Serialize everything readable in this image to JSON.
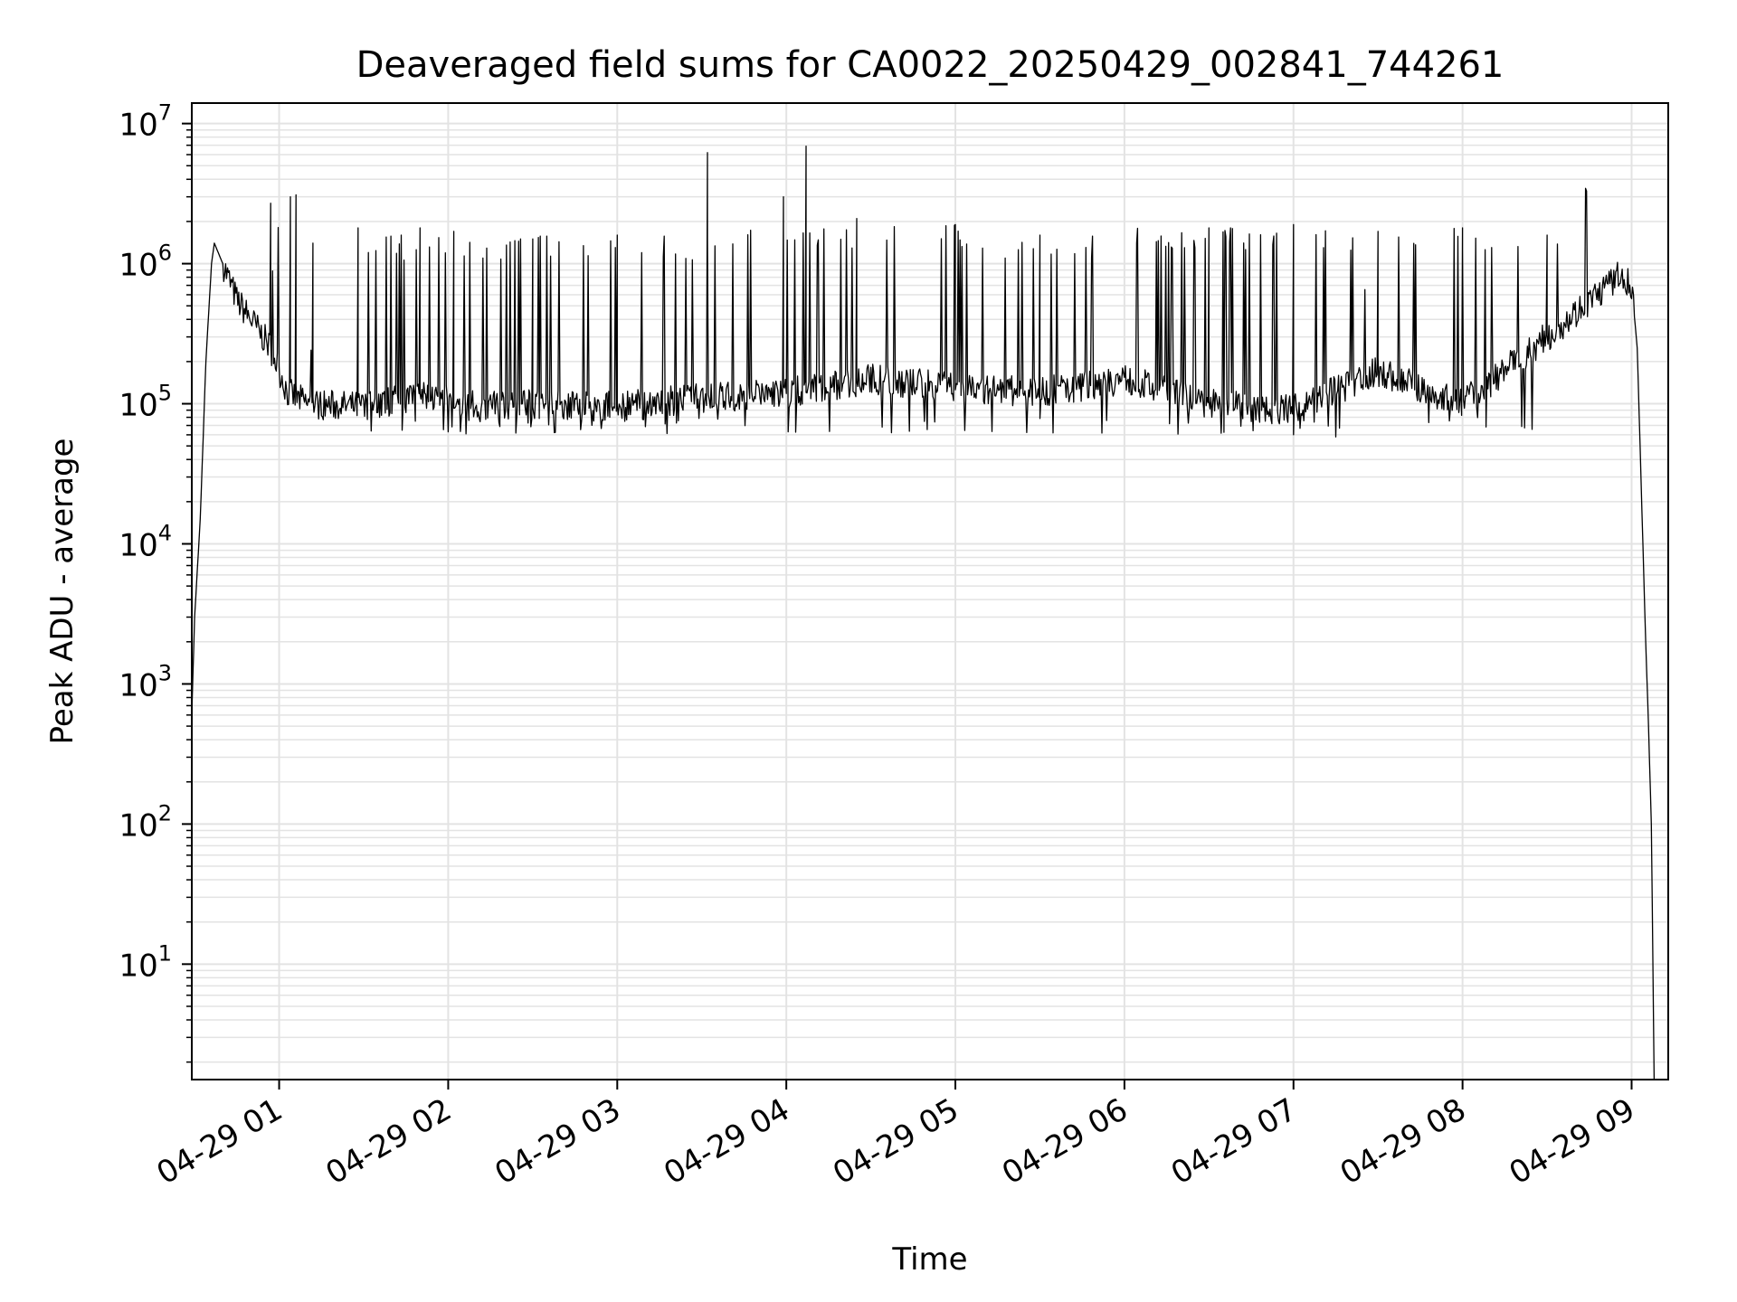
{
  "chart_data": {
    "type": "line",
    "title": "Deaveraged field sums for CA0022_20250429_002841_744261",
    "xlabel": "Time",
    "ylabel": "Peak ADU - average",
    "yscale": "log",
    "ylim": [
      1.5,
      14000000
    ],
    "xlim": [
      "2025-04-29 00:29",
      "2025-04-29 09:13"
    ],
    "grid": true,
    "line_color": "#000000",
    "x_tick_labels": [
      "04-29 01",
      "04-29 02",
      "04-29 03",
      "04-29 04",
      "04-29 05",
      "04-29 06",
      "04-29 07",
      "04-29 08",
      "04-29 09"
    ],
    "x_ticks": [
      "2025-04-29 01:00",
      "2025-04-29 02:00",
      "2025-04-29 03:00",
      "2025-04-29 04:00",
      "2025-04-29 05:00",
      "2025-04-29 06:00",
      "2025-04-29 07:00",
      "2025-04-29 08:00",
      "2025-04-29 09:00"
    ],
    "y_tick_labels": [
      {
        "base": "10",
        "exp": "1",
        "value": 10
      },
      {
        "base": "10",
        "exp": "2",
        "value": 100
      },
      {
        "base": "10",
        "exp": "3",
        "value": 1000
      },
      {
        "base": "10",
        "exp": "4",
        "value": 10000
      },
      {
        "base": "10",
        "exp": "5",
        "value": 100000
      },
      {
        "base": "10",
        "exp": "6",
        "value": 1000000
      },
      {
        "base": "10",
        "exp": "7",
        "value": 10000000
      }
    ],
    "series": [
      {
        "points": [
          [
            "2025-04-29 00:29",
            600
          ],
          [
            "2025-04-29 00:30",
            3000
          ],
          [
            "2025-04-29 00:32",
            15000
          ],
          [
            "2025-04-29 00:34",
            200000
          ],
          [
            "2025-04-29 00:36",
            1000000
          ],
          [
            "2025-04-29 00:37",
            1400000
          ],
          [
            "2025-04-29 00:40",
            1000000
          ],
          [
            "2025-04-29 00:45",
            550000
          ],
          [
            "2025-04-29 00:50",
            400000
          ],
          [
            "2025-04-29 00:57",
            250000
          ],
          [
            "2025-04-29 01:03",
            120000
          ],
          [
            "2025-04-29 01:10",
            100000
          ],
          [
            "2025-04-29 01:30",
            95000
          ],
          [
            "2025-04-29 01:50",
            115000
          ],
          [
            "2025-04-29 02:10",
            95000
          ],
          [
            "2025-04-29 02:30",
            100000
          ],
          [
            "2025-04-29 03:00",
            95000
          ],
          [
            "2025-04-29 03:30",
            110000
          ],
          [
            "2025-04-29 04:00",
            120000
          ],
          [
            "2025-04-29 04:30",
            150000
          ],
          [
            "2025-04-29 05:00",
            130000
          ],
          [
            "2025-04-29 05:30",
            120000
          ],
          [
            "2025-04-29 06:00",
            150000
          ],
          [
            "2025-04-29 06:30",
            100000
          ],
          [
            "2025-04-29 07:00",
            90000
          ],
          [
            "2025-04-29 07:30",
            170000
          ],
          [
            "2025-04-29 08:00",
            100000
          ],
          [
            "2025-04-29 08:30",
            300000
          ],
          [
            "2025-04-29 08:55",
            800000
          ],
          [
            "2025-04-29 09:00",
            700000
          ],
          [
            "2025-04-29 09:02",
            250000
          ],
          [
            "2025-04-29 09:03",
            50000
          ],
          [
            "2025-04-29 09:05",
            2000
          ],
          [
            "2025-04-29 09:06",
            500
          ],
          [
            "2025-04-29 09:07",
            100
          ],
          [
            "2025-04-29 09:08",
            1.5
          ]
        ],
        "spikes": [
          [
            "2025-04-29 00:57",
            2700000
          ],
          [
            "2025-04-29 01:04",
            3000000
          ],
          [
            "2025-04-29 01:06",
            3100000
          ],
          [
            "2025-04-29 01:12",
            1400000
          ],
          [
            "2025-04-29 01:28",
            1800000
          ],
          [
            "2025-04-29 01:50",
            1800000
          ],
          [
            "2025-04-29 02:02",
            1700000
          ],
          [
            "2025-04-29 02:30",
            1500000
          ],
          [
            "2025-04-29 03:00",
            1600000
          ],
          [
            "2025-04-29 03:32",
            6200000
          ],
          [
            "2025-04-29 03:59",
            3000000
          ],
          [
            "2025-04-29 04:07",
            6900000
          ],
          [
            "2025-04-29 04:25",
            2100000
          ],
          [
            "2025-04-29 05:00",
            1900000
          ],
          [
            "2025-04-29 05:30",
            1600000
          ],
          [
            "2025-04-29 06:30",
            1800000
          ],
          [
            "2025-04-29 07:00",
            1900000
          ],
          [
            "2025-04-29 07:30",
            1700000
          ],
          [
            "2025-04-29 08:00",
            1800000
          ],
          [
            "2025-04-29 08:30",
            1600000
          ]
        ],
        "dense_bands": [
          {
            "from": "2025-04-29 01:30",
            "to": "2025-04-29 03:30",
            "low": 80000,
            "high": 1600000
          },
          {
            "from": "2025-04-29 03:30",
            "to": "2025-04-29 05:05",
            "low": 80000,
            "high": 1900000
          },
          {
            "from": "2025-04-29 05:05",
            "to": "2025-04-29 05:55",
            "low": 80000,
            "high": 1600000
          },
          {
            "from": "2025-04-29 06:10",
            "to": "2025-04-29 07:25",
            "low": 75000,
            "high": 1850000
          },
          {
            "from": "2025-04-29 07:35",
            "to": "2025-04-29 08:25",
            "low": 80000,
            "high": 1800000
          }
        ]
      }
    ]
  }
}
